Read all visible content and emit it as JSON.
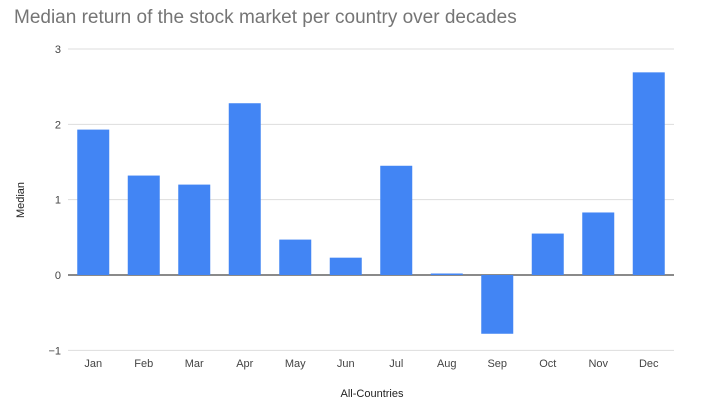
{
  "chart_data": {
    "type": "bar",
    "title": "Median return of the stock market per country over decades",
    "xlabel": "All-Countries",
    "ylabel": "Median",
    "categories": [
      "Jan",
      "Feb",
      "Mar",
      "Apr",
      "May",
      "Jun",
      "Jul",
      "Aug",
      "Sep",
      "Oct",
      "Nov",
      "Dec"
    ],
    "series": [
      {
        "values": [
          1.93,
          1.32,
          1.2,
          2.28,
          0.47,
          0.23,
          1.45,
          0.02,
          -0.78,
          0.55,
          0.83,
          2.69
        ]
      }
    ],
    "ylim": [
      -1,
      3
    ],
    "yticks": [
      3,
      2,
      1,
      0,
      -1
    ],
    "yticklabels": [
      "3",
      "2",
      "1",
      "0",
      "−1"
    ],
    "grid": true,
    "legend": "none",
    "colors": {
      "bar": "#4285f4",
      "grid": "#dddddd",
      "baseline": "#444444"
    }
  }
}
